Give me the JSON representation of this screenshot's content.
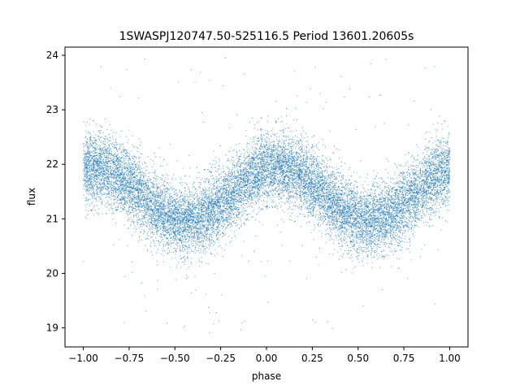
{
  "chart_data": {
    "type": "scatter",
    "title": "1SWASPJ120747.50-525116.5 Period 13601.20605s",
    "xlabel": "phase",
    "ylabel": "flux",
    "xlim": [
      -1.1,
      1.1
    ],
    "ylim": [
      18.65,
      24.15
    ],
    "xticks": [
      -1.0,
      -0.75,
      -0.5,
      -0.25,
      0.0,
      0.25,
      0.5,
      0.75,
      1.0
    ],
    "xtick_labels": [
      "−1.00",
      "−0.75",
      "−0.50",
      "−0.25",
      "0.00",
      "0.25",
      "0.50",
      "0.75",
      "1.00"
    ],
    "yticks": [
      19,
      20,
      21,
      22,
      23,
      24
    ],
    "ytick_labels": [
      "19",
      "20",
      "21",
      "22",
      "23",
      "24"
    ],
    "grid": false,
    "series": [
      {
        "color": "#1f77b4",
        "marker_size": 1,
        "model": {
          "mean_flux": 21.45,
          "amplitude": 0.5,
          "peak_phase": 0.06,
          "period_in_phase": 1.0,
          "scatter_sigma": 0.32,
          "outlier_range": [
            18.9,
            24.0
          ],
          "x_range": [
            -1.0,
            1.0
          ]
        },
        "points": [
          [
            -1.0,
            21.85
          ],
          [
            -0.9,
            21.95
          ],
          [
            -0.8,
            21.75
          ],
          [
            -0.7,
            21.55
          ],
          [
            -0.6,
            21.3
          ],
          [
            -0.5,
            21.1
          ],
          [
            -0.4,
            20.95
          ],
          [
            -0.3,
            21.05
          ],
          [
            -0.2,
            21.3
          ],
          [
            -0.1,
            21.6
          ],
          [
            0.0,
            21.85
          ],
          [
            0.1,
            21.95
          ],
          [
            0.2,
            21.8
          ],
          [
            0.3,
            21.55
          ],
          [
            0.4,
            21.3
          ],
          [
            0.5,
            21.1
          ],
          [
            0.6,
            20.95
          ],
          [
            0.7,
            21.05
          ],
          [
            0.8,
            21.3
          ],
          [
            0.9,
            21.6
          ],
          [
            1.0,
            21.85
          ]
        ]
      }
    ]
  }
}
